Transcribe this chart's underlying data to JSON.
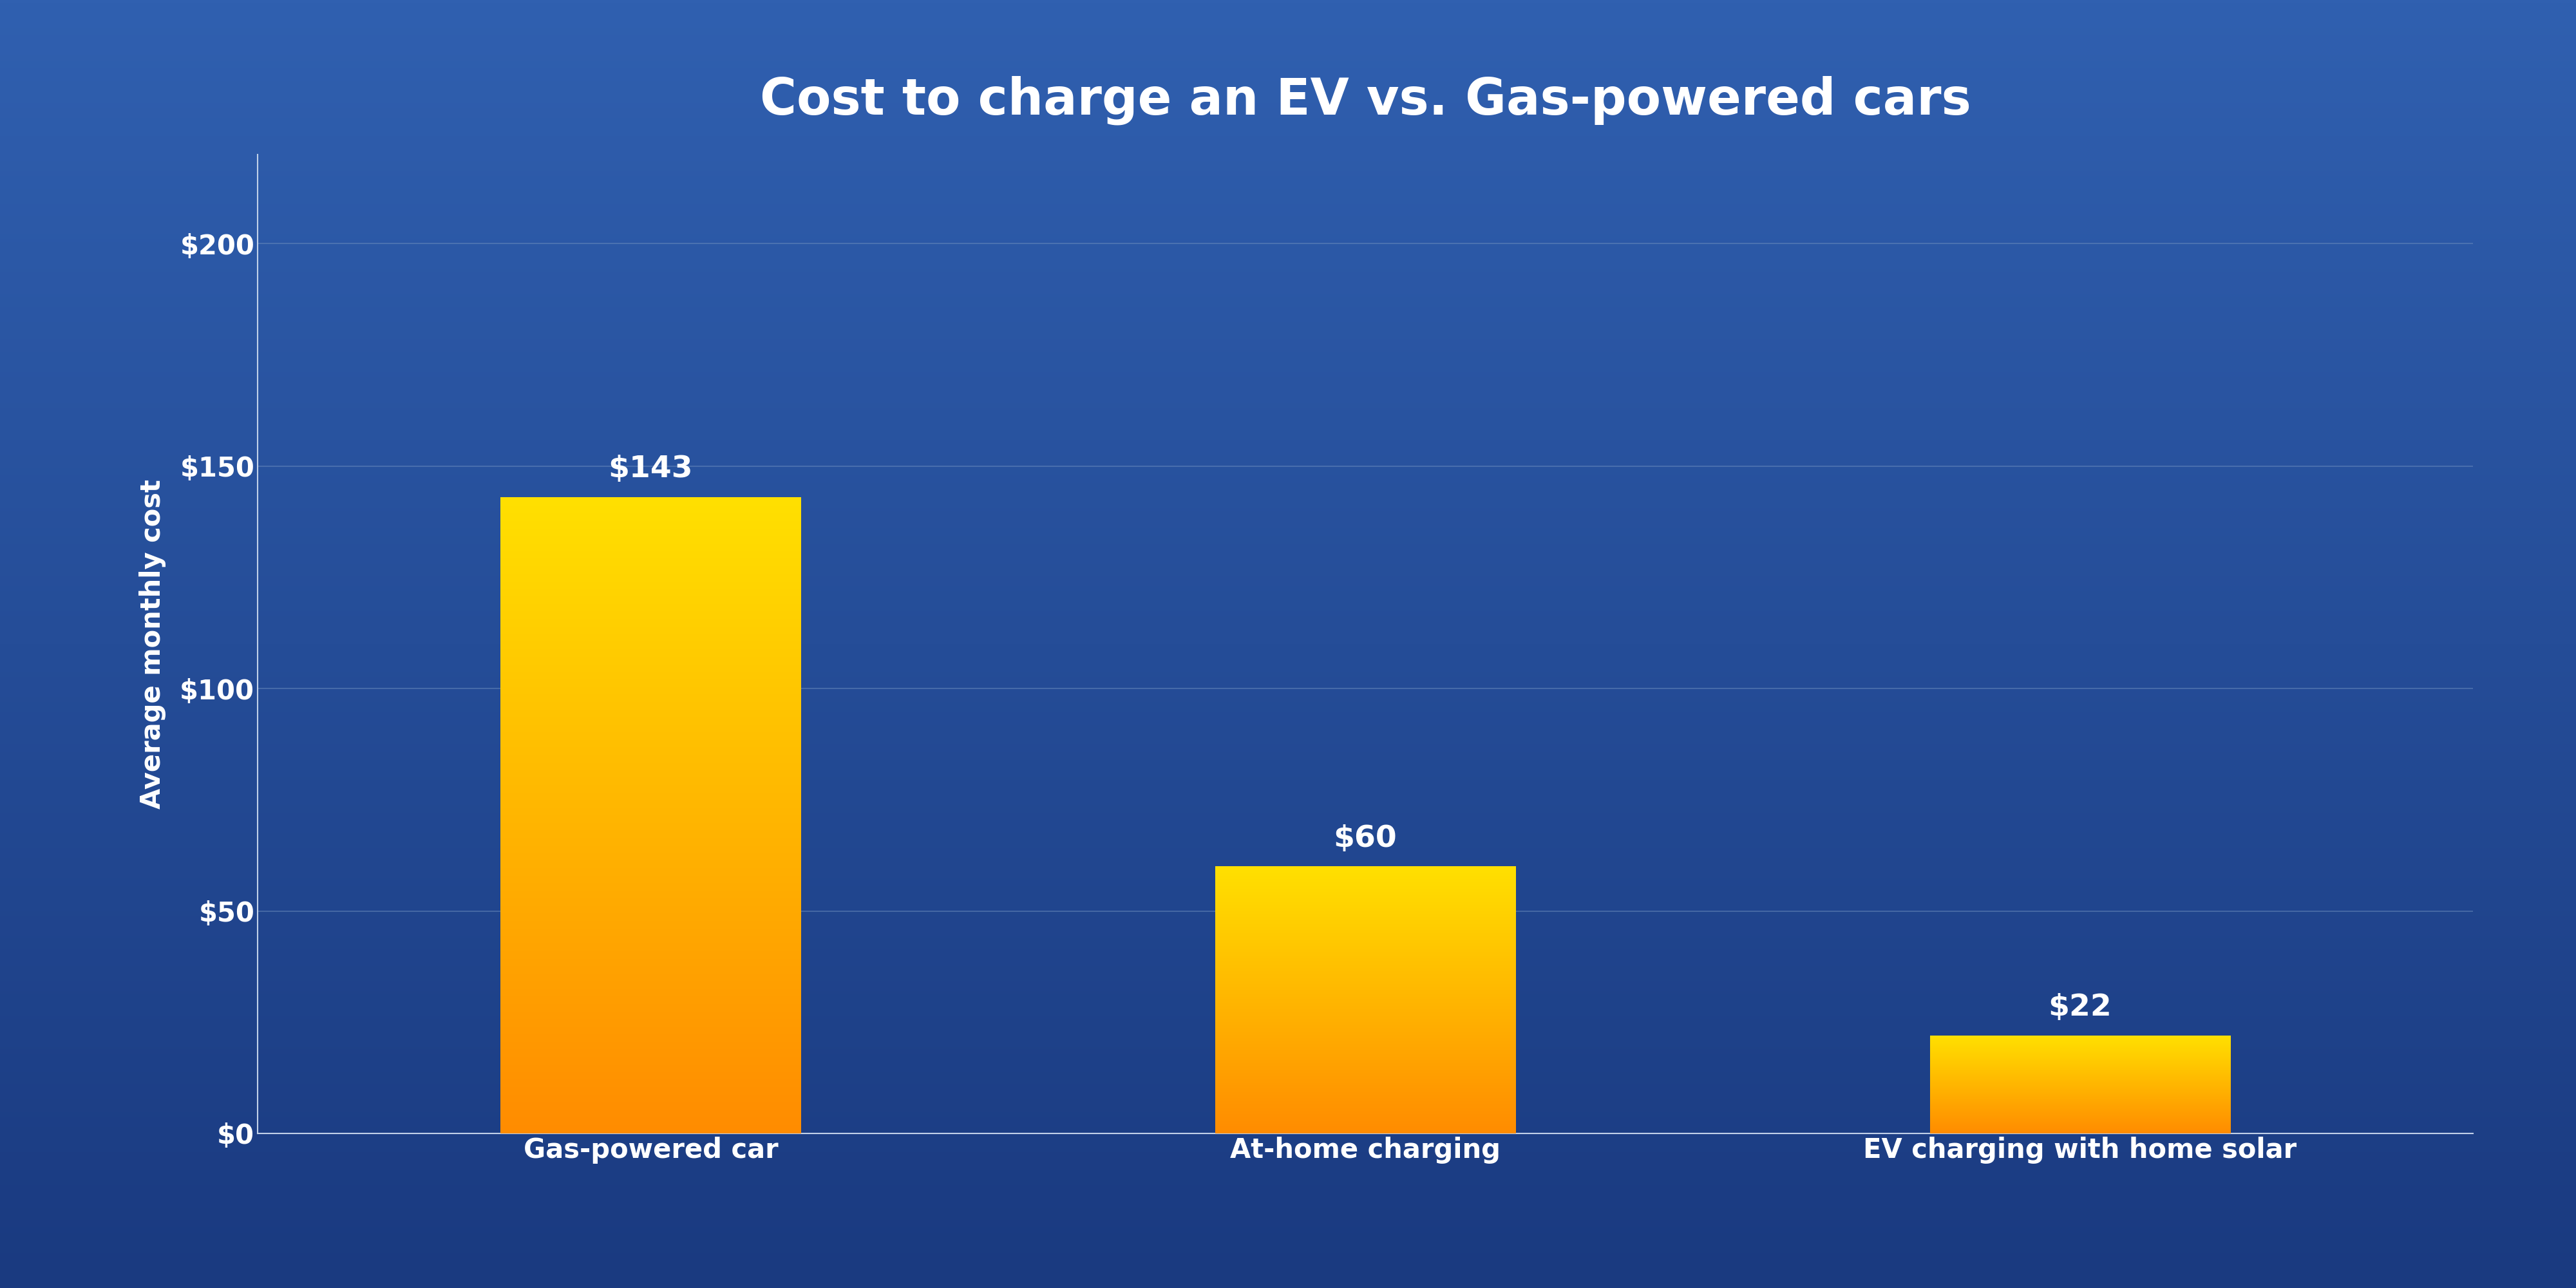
{
  "title": "Cost to charge an EV vs. Gas-powered cars",
  "ylabel": "Average monthly cost",
  "categories": [
    "Gas-powered car",
    "At-home charging",
    "EV charging with home solar"
  ],
  "values": [
    143,
    60,
    22
  ],
  "bar_labels": [
    "$143",
    "$60",
    "$22"
  ],
  "yticks": [
    0,
    50,
    100,
    150,
    200
  ],
  "ytick_labels": [
    "$0",
    "$50",
    "$100",
    "$150",
    "$200"
  ],
  "ylim": [
    0,
    220
  ],
  "bg_color": "#3060b0",
  "bg_color_dark": "#1a3a80",
  "bar_color_top": "#ffe000",
  "bar_color_bottom": "#ff8c00",
  "axis_line_color": "#c0d0e8",
  "grid_color": "#7090c0",
  "text_color": "#ffffff",
  "title_fontsize": 56,
  "tick_fontsize": 30,
  "bar_label_fontsize": 34,
  "ylabel_fontsize": 30,
  "bar_width": 0.42,
  "card_bg": "#2d5aa8",
  "card_bg2": "#1e3d7a"
}
